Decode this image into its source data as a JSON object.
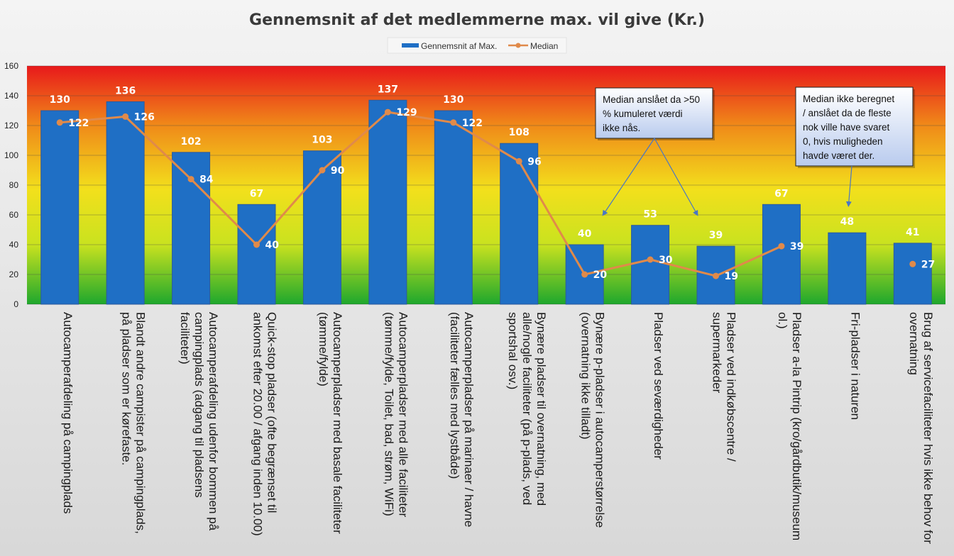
{
  "chart_data": {
    "type": "bar",
    "title": "Gennemsnit af det medlemmerne max. vil give (Kr.)",
    "ylim": [
      0,
      160
    ],
    "yticks": [
      0,
      20,
      40,
      60,
      80,
      100,
      120,
      140,
      160
    ],
    "grid": true,
    "legend_position": "top",
    "categories": [
      "Autocamperafdeling på campingplads",
      "Blandt andre campister på campingplads, på pladser som er kørefaste.",
      "Autocamperafdeling udenfor bommen på campingplads (adgang til pladsens faciliteter)",
      "Quick-stop pladser (ofte begrænset til ankomst efter 20.00 / afgang inden 10.00)",
      "Autocamperpladser med basale faciliteter (tømme/fylde)",
      "Autocamperpladser med alle faciliteter (tømme/fylde, Toilet, bad, strøm, WiFi)",
      "Autocamperpladser på marinaer / havne (faciliteter fælles med lystbåde)",
      "Bynære pladser til overnatning, med alle/nogle faciliteter (på p-plads, ved sportshal osv.)",
      "Bynære p-pladser i autocamperstørrelse (overnatning ikke tilladt)",
      "Pladser ved seværdigheder",
      "Pladser ved indkøbscentre / supermarkeder",
      "Pladser a-la Pintrip (kro/gårdbutik/museum ol.)",
      "Fri-pladser i naturen",
      "Brug af servicefaciliteter hvis ikke behov for overnatning"
    ],
    "category_lines": [
      [
        "Autocamperafdeling på campingplads"
      ],
      [
        "Blandt andre campister på campingplads,",
        "på pladser som er kørefaste."
      ],
      [
        "Autocamperafdeling udenfor bommen på",
        "campingplads (adgang til pladsens",
        "faciliteter)"
      ],
      [
        "Quick-stop pladser (ofte begrænset til",
        "ankomst efter 20.00 / afgang inden 10.00)"
      ],
      [
        "Autocamperpladser med basale faciliteter",
        "(tømme/fylde)"
      ],
      [
        "Autocamperpladser med alle faciliteter",
        "(tømme/fylde, Toilet, bad, strøm, WiFi)"
      ],
      [
        "Autocamperpladser på marinaer / havne",
        "(faciliteter fælles med lystbåde)"
      ],
      [
        "Bynære pladser til overnatning, med",
        "alle/nogle faciliteter (på p-plads, ved",
        "sportshal osv.)"
      ],
      [
        "Bynære p-pladser i autocamperstørrelse",
        "(overnatning ikke tilladt)"
      ],
      [
        "Pladser ved seværdigheder"
      ],
      [
        "Pladser ved indkøbscentre /",
        "supermarkeder"
      ],
      [
        "Pladser a-la Pintrip (kro/gårdbutik/museum",
        "ol.)"
      ],
      [
        "Fri-pladser i naturen"
      ],
      [
        "Brug af servicefaciliteter hvis ikke behov for",
        "overnatning"
      ]
    ],
    "series": [
      {
        "name": "Gennemsnit af Max.",
        "type": "bar",
        "color": "#1f6fc5",
        "values": [
          130,
          136,
          102,
          67,
          103,
          137,
          130,
          108,
          40,
          53,
          39,
          67,
          48,
          41
        ]
      },
      {
        "name": "Median",
        "type": "line",
        "color": "#e08a4a",
        "values": [
          122,
          126,
          84,
          40,
          90,
          129,
          122,
          96,
          20,
          30,
          19,
          39,
          null,
          27
        ],
        "connected_until_index": 11
      }
    ],
    "background_gradient": [
      "#e8191b",
      "#f08a19",
      "#f2e01c",
      "#c9e21f",
      "#1ea72d"
    ],
    "annotations": [
      {
        "lines": [
          "Median anslået da >50",
          "% kumuleret værdi",
          "ikke nås."
        ],
        "points_to_categories": [
          8,
          10
        ]
      },
      {
        "lines": [
          "Median ikke beregnet",
          "/ anslået da de fleste",
          "nok ville have svaret",
          "0, hvis muligheden",
          "havde været der."
        ],
        "points_to_categories": [
          12
        ]
      }
    ]
  }
}
